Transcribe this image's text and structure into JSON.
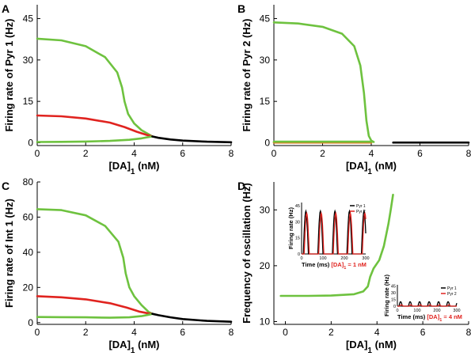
{
  "colors": {
    "green": "#6ec23f",
    "red": "#e0231f",
    "black": "#000000",
    "orange": "#e07a1f"
  },
  "chart_data": [
    {
      "panel_label": "A",
      "type": "line",
      "xlabel": "[DA]1 (nM)",
      "ylabel": "Firing rate of Pyr 1 (Hz)",
      "xlim": [
        0,
        8
      ],
      "ylim": [
        -1,
        50
      ],
      "xticks": [
        "0",
        "2",
        "4",
        "6",
        "8"
      ],
      "yticks": [
        "0",
        "15",
        "30",
        "45"
      ],
      "ytick_values": [
        0,
        15,
        30,
        45
      ],
      "series": [
        {
          "color": "green",
          "points": [
            [
              0,
              37.7
            ],
            [
              1,
              37.1
            ],
            [
              2,
              35
            ],
            [
              2.8,
              31
            ],
            [
              3.3,
              25.5
            ],
            [
              3.5,
              20
            ],
            [
              3.6,
              15
            ],
            [
              3.75,
              10.5
            ],
            [
              4,
              7
            ],
            [
              4.3,
              4.6
            ],
            [
              4.6,
              3.1
            ],
            [
              4.75,
              2.3
            ]
          ]
        },
        {
          "color": "red",
          "points": [
            [
              0,
              9.9
            ],
            [
              1,
              9.6
            ],
            [
              2,
              8.8
            ],
            [
              3,
              7.3
            ],
            [
              3.6,
              5.7
            ],
            [
              4.1,
              4
            ],
            [
              4.5,
              2.9
            ],
            [
              4.75,
              2.3
            ]
          ]
        },
        {
          "color": "green",
          "points": [
            [
              0,
              0.3
            ],
            [
              1,
              0.35
            ],
            [
              2,
              0.45
            ],
            [
              3,
              0.7
            ],
            [
              3.8,
              1.1
            ],
            [
              4.3,
              1.6
            ],
            [
              4.6,
              2.1
            ],
            [
              4.75,
              2.3
            ]
          ]
        },
        {
          "color": "black",
          "points": [
            [
              4.75,
              2.3
            ],
            [
              5,
              1.8
            ],
            [
              5.5,
              1.2
            ],
            [
              6,
              0.8
            ],
            [
              7,
              0.4
            ],
            [
              8,
              0.2
            ]
          ]
        }
      ]
    },
    {
      "panel_label": "B",
      "type": "line",
      "xlabel": "[DA]1 (nM)",
      "ylabel": "Firing rate of Pyr 2 (Hz)",
      "xlim": [
        0,
        8
      ],
      "ylim": [
        -1,
        50
      ],
      "xticks": [
        "0",
        "2",
        "4",
        "6",
        "8"
      ],
      "yticks": [
        "0",
        "15",
        "30",
        "45"
      ],
      "ytick_values": [
        0,
        15,
        30,
        45
      ],
      "series": [
        {
          "color": "green",
          "points": [
            [
              0,
              43.6
            ],
            [
              1,
              43.2
            ],
            [
              2,
              42
            ],
            [
              2.8,
              39.5
            ],
            [
              3.3,
              35
            ],
            [
              3.55,
              28
            ],
            [
              3.7,
              18
            ],
            [
              3.8,
              8
            ],
            [
              3.9,
              2.5
            ],
            [
              4,
              0.8
            ],
            [
              4.1,
              0.3
            ]
          ]
        },
        {
          "color": "orange",
          "points": [
            [
              0,
              0.1
            ],
            [
              4,
              0.1
            ]
          ]
        },
        {
          "color": "green",
          "points": [
            [
              0,
              0.4
            ],
            [
              4.05,
              0.4
            ]
          ]
        },
        {
          "color": "black",
          "points": [
            [
              4.9,
              0.1
            ],
            [
              8,
              0.1
            ]
          ]
        }
      ]
    },
    {
      "panel_label": "C",
      "type": "line",
      "xlabel": "[DA]1 (nM)",
      "ylabel": "Firing rate of Int 1 (Hz)",
      "xlim": [
        0,
        8
      ],
      "ylim": [
        -1,
        80
      ],
      "xticks": [
        "0",
        "2",
        "4",
        "6",
        "8"
      ],
      "yticks": [
        "0",
        "20",
        "40",
        "60",
        "80"
      ],
      "ytick_values": [
        0,
        20,
        40,
        60,
        80
      ],
      "series": [
        {
          "color": "green",
          "points": [
            [
              0,
              64.5
            ],
            [
              1,
              64
            ],
            [
              2,
              61
            ],
            [
              2.8,
              55
            ],
            [
              3.35,
              46
            ],
            [
              3.55,
              37
            ],
            [
              3.65,
              28
            ],
            [
              3.8,
              20
            ],
            [
              4,
              15
            ],
            [
              4.3,
              10
            ],
            [
              4.6,
              6
            ],
            [
              4.75,
              5
            ]
          ]
        },
        {
          "color": "red",
          "points": [
            [
              0,
              15
            ],
            [
              1,
              14.4
            ],
            [
              2,
              13.2
            ],
            [
              3,
              11
            ],
            [
              3.7,
              8.5
            ],
            [
              4.2,
              6.3
            ],
            [
              4.6,
              5.2
            ],
            [
              4.75,
              5
            ]
          ]
        },
        {
          "color": "green",
          "points": [
            [
              0,
              3.2
            ],
            [
              1,
              3.1
            ],
            [
              2,
              3
            ],
            [
              3,
              2.8
            ],
            [
              3.8,
              3
            ],
            [
              4.3,
              3.7
            ],
            [
              4.6,
              4.5
            ],
            [
              4.75,
              5
            ]
          ]
        },
        {
          "color": "black",
          "points": [
            [
              4.75,
              5
            ],
            [
              5,
              4.2
            ],
            [
              5.5,
              3
            ],
            [
              6,
              2
            ],
            [
              7,
              1
            ],
            [
              8,
              0.5
            ]
          ]
        }
      ]
    },
    {
      "panel_label": "D",
      "type": "line",
      "xlabel": "[DA]1 (nM)",
      "ylabel": "Frequency of oscillation (Hz)",
      "xlim": [
        -0.5,
        8
      ],
      "ylim": [
        9.5,
        35
      ],
      "xticks": [
        "0",
        "2",
        "4",
        "6",
        "8"
      ],
      "xtick_values": [
        0,
        2,
        4,
        6,
        8
      ],
      "yticks": [
        "10",
        "20",
        "30"
      ],
      "ytick_values": [
        10,
        20,
        30
      ],
      "series": [
        {
          "color": "green",
          "points": [
            [
              -0.2,
              14.6
            ],
            [
              1,
              14.6
            ],
            [
              2,
              14.65
            ],
            [
              3,
              14.9
            ],
            [
              3.4,
              15.4
            ],
            [
              3.6,
              16.3
            ],
            [
              3.7,
              18
            ],
            [
              3.85,
              19.5
            ],
            [
              4.1,
              21
            ],
            [
              4.3,
              23.5
            ],
            [
              4.5,
              27.5
            ],
            [
              4.6,
              30
            ],
            [
              4.7,
              32.7
            ]
          ]
        }
      ],
      "insets": [
        {
          "xlabel": "Time (ms)",
          "ylabel": "Firing rate (Hz)",
          "caption_prefix": "[DA]",
          "caption_sub": "1",
          "caption_suffix": " = 1 nM",
          "xticks": [
            "0",
            "100",
            "200",
            "300"
          ],
          "yticks": [
            "0",
            "15",
            "30",
            "45"
          ],
          "legend": [
            "Pyr 1",
            "Pyr 2"
          ],
          "pulse_period_ms": 68,
          "peak_pyr1_hz": 40,
          "peak_pyr2_hz": 38
        },
        {
          "xlabel": "Time (ms)",
          "ylabel": "Firing rate (Hz)",
          "caption_prefix": "[DA]",
          "caption_sub": "1",
          "caption_suffix": " = 4 nM",
          "xticks": [
            "0",
            "100",
            "200",
            "300"
          ],
          "yticks": [
            "0",
            "15",
            "30",
            "45"
          ],
          "legend": [
            "Pyr 1",
            "Pyr 2"
          ],
          "pulse_period_ms": 48,
          "peak_pyr1_hz": 10,
          "peak_pyr2_hz": 3
        }
      ]
    }
  ]
}
